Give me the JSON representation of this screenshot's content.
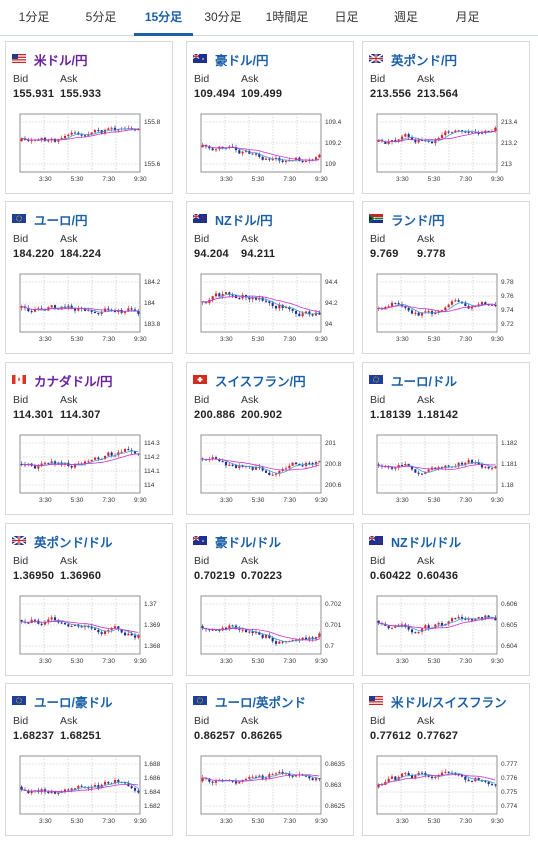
{
  "tabs": [
    {
      "label": "1分足",
      "active": false
    },
    {
      "label": "5分足",
      "active": false
    },
    {
      "label": "15分足",
      "active": true
    },
    {
      "label": "30分足",
      "active": false
    },
    {
      "label": "1時間足",
      "active": false
    },
    {
      "label": "日足",
      "active": false
    },
    {
      "label": "週足",
      "active": false
    },
    {
      "label": "月足",
      "active": false
    }
  ],
  "labels": {
    "bid": "Bid",
    "ask": "Ask"
  },
  "colors": {
    "accent": "#1a5fa8",
    "candle_up": "#d7262b",
    "candle_down": "#1d2f8f",
    "ma_short": "#3aa0d8",
    "ma_long": "#cc33cc"
  },
  "cards": [
    {
      "pair": "米ドル/円",
      "pair_color": "#6a1fa0",
      "flag": "us-jp",
      "bid": "155.931",
      "ask": "155.933",
      "y_ticks": [
        "155.8",
        "155.6"
      ],
      "x_ticks": [
        "3:30",
        "5:30",
        "7:30",
        "9:30"
      ]
    },
    {
      "pair": "豪ドル/円",
      "pair_color": "#1a5fa8",
      "flag": "au-jp",
      "bid": "109.494",
      "ask": "109.499",
      "y_ticks": [
        "109.4",
        "109.2",
        "109"
      ],
      "x_ticks": [
        "3:30",
        "5:30",
        "7:30",
        "9:30"
      ]
    },
    {
      "pair": "英ポンド/円",
      "pair_color": "#1a5fa8",
      "flag": "gb-jp",
      "bid": "213.556",
      "ask": "213.564",
      "y_ticks": [
        "213.4",
        "213.2",
        "213"
      ],
      "x_ticks": [
        "3:30",
        "5:30",
        "7:30",
        "9:30"
      ]
    },
    {
      "pair": "ユーロ/円",
      "pair_color": "#1a5fa8",
      "flag": "eu-jp",
      "bid": "184.220",
      "ask": "184.224",
      "y_ticks": [
        "184.2",
        "184",
        "183.8"
      ],
      "x_ticks": [
        "3:30",
        "5:30",
        "7:30",
        "9:30"
      ]
    },
    {
      "pair": "NZドル/円",
      "pair_color": "#1a5fa8",
      "flag": "nz-jp",
      "bid": "94.204",
      "ask": "94.211",
      "y_ticks": [
        "94.4",
        "94.2",
        "94"
      ],
      "x_ticks": [
        "3:30",
        "5:30",
        "7:30",
        "9:30"
      ]
    },
    {
      "pair": "ランド/円",
      "pair_color": "#1a5fa8",
      "flag": "za-jp",
      "bid": "9.769",
      "ask": "9.778",
      "y_ticks": [
        "9.78",
        "9.76",
        "9.74",
        "9.72"
      ],
      "x_ticks": [
        "3:30",
        "5:30",
        "7:30",
        "9:30"
      ]
    },
    {
      "pair": "カナダドル/円",
      "pair_color": "#6a1fa0",
      "flag": "ca-jp",
      "bid": "114.301",
      "ask": "114.307",
      "y_ticks": [
        "114.3",
        "114.2",
        "114.1",
        "114"
      ],
      "x_ticks": [
        "3:30",
        "5:30",
        "7:30",
        "9:30"
      ]
    },
    {
      "pair": "スイスフラン/円",
      "pair_color": "#1a5fa8",
      "flag": "ch-jp",
      "bid": "200.886",
      "ask": "200.902",
      "y_ticks": [
        "201",
        "200.8",
        "200.6"
      ],
      "x_ticks": [
        "3:30",
        "5:30",
        "7:30",
        "9:30"
      ]
    },
    {
      "pair": "ユーロ/ドル",
      "pair_color": "#1a5fa8",
      "flag": "eu-us",
      "bid": "1.18139",
      "ask": "1.18142",
      "y_ticks": [
        "1.182",
        "1.181",
        "1.18"
      ],
      "x_ticks": [
        "3:30",
        "5:30",
        "7:30",
        "9:30"
      ]
    },
    {
      "pair": "英ポンド/ドル",
      "pair_color": "#1a5fa8",
      "flag": "gb-us",
      "bid": "1.36950",
      "ask": "1.36960",
      "y_ticks": [
        "1.37",
        "1.369",
        "1.368"
      ],
      "x_ticks": [
        "3:30",
        "5:30",
        "7:30",
        "9:30"
      ]
    },
    {
      "pair": "豪ドル/ドル",
      "pair_color": "#1a5fa8",
      "flag": "au-us",
      "bid": "0.70219",
      "ask": "0.70223",
      "y_ticks": [
        "0.702",
        "0.701",
        "0.7"
      ],
      "x_ticks": [
        "3:30",
        "5:30",
        "7:30",
        "9:30"
      ]
    },
    {
      "pair": "NZドル/ドル",
      "pair_color": "#1a5fa8",
      "flag": "nz-us",
      "bid": "0.60422",
      "ask": "0.60436",
      "y_ticks": [
        "0.606",
        "0.605",
        "0.604"
      ],
      "x_ticks": [
        "3:30",
        "5:30",
        "7:30",
        "9:30"
      ]
    },
    {
      "pair": "ユーロ/豪ドル",
      "pair_color": "#1a5fa8",
      "flag": "eu-au",
      "bid": "1.68237",
      "ask": "1.68251",
      "y_ticks": [
        "1.688",
        "1.686",
        "1.684",
        "1.682"
      ],
      "x_ticks": [
        "3:30",
        "5:30",
        "7:30",
        "9:30"
      ]
    },
    {
      "pair": "ユーロ/英ポンド",
      "pair_color": "#1a5fa8",
      "flag": "eu-gb",
      "bid": "0.86257",
      "ask": "0.86265",
      "y_ticks": [
        "0.8635",
        "0.863",
        "0.8625"
      ],
      "x_ticks": [
        "3:30",
        "5:30",
        "7:30",
        "9:30"
      ]
    },
    {
      "pair": "米ドル/スイスフラン",
      "pair_color": "#1a5fa8",
      "flag": "us-ch",
      "bid": "0.77612",
      "ask": "0.77627",
      "y_ticks": [
        "0.777",
        "0.776",
        "0.775",
        "0.774"
      ],
      "x_ticks": [
        "3:30",
        "5:30",
        "7:30",
        "9:30"
      ]
    }
  ]
}
